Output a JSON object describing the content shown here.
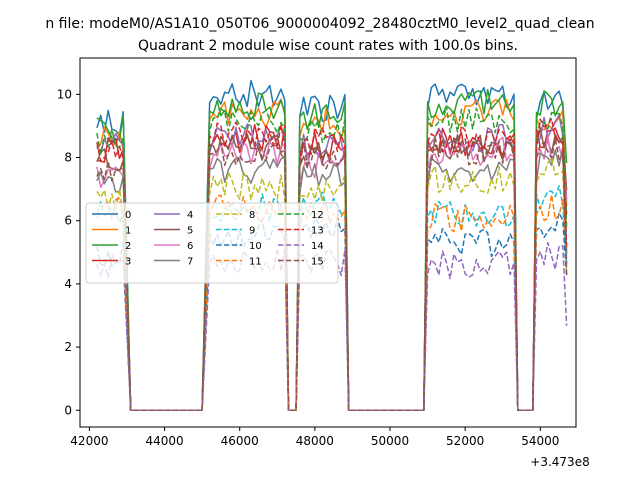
{
  "suptitle": "n file: modeM0/AS1A10_050T06_9000004092_28480cztM0_level2_quad_clean",
  "chart_data": {
    "type": "line",
    "title": "Quadrant 2 module wise count rates with 100.0s bins.",
    "xlabel": "",
    "ylabel": "",
    "x_offset_label": "+3.473e8",
    "xlim": [
      41750,
      54950
    ],
    "ylim": [
      -0.53,
      11.15
    ],
    "xticks": [
      42000,
      44000,
      46000,
      48000,
      50000,
      52000,
      54000
    ],
    "yticks": [
      0,
      2,
      4,
      6,
      8,
      10
    ],
    "grid": false,
    "legend_position": "center-left",
    "legend_columns": 4,
    "segments": [
      {
        "x_start": 42200,
        "x_end": 42900,
        "step": 100
      },
      {
        "x_start": 45200,
        "x_end": 47200,
        "step": 100
      },
      {
        "x_start": 47600,
        "x_end": 48800,
        "step": 100
      },
      {
        "x_start": 51000,
        "x_end": 53300,
        "step": 100
      },
      {
        "x_start": 53900,
        "x_end": 54700,
        "step": 100
      }
    ],
    "zero_x": [
      43100,
      45000,
      47300,
      47500,
      48900,
      50900,
      53400,
      53800
    ],
    "series": [
      {
        "name": "0",
        "color": "#1f77b4",
        "dash": false,
        "levels": [
          9.1,
          10.0,
          9.6,
          10.0,
          9.8
        ]
      },
      {
        "name": "1",
        "color": "#ff7f0e",
        "dash": false,
        "levels": [
          8.6,
          9.4,
          9.1,
          9.4,
          9.3
        ]
      },
      {
        "name": "2",
        "color": "#2ca02c",
        "dash": false,
        "levels": [
          9.0,
          9.6,
          9.3,
          9.7,
          9.7
        ]
      },
      {
        "name": "3",
        "color": "#d62728",
        "dash": false,
        "levels": [
          8.2,
          8.6,
          8.4,
          8.5,
          8.7
        ]
      },
      {
        "name": "4",
        "color": "#9467bd",
        "dash": false,
        "levels": [
          8.4,
          8.7,
          8.4,
          8.6,
          8.9
        ]
      },
      {
        "name": "5",
        "color": "#8c564b",
        "dash": false,
        "levels": [
          7.9,
          8.3,
          8.1,
          8.3,
          8.5
        ]
      },
      {
        "name": "6",
        "color": "#e377c2",
        "dash": false,
        "levels": [
          7.5,
          8.1,
          7.8,
          8.2,
          8.3
        ]
      },
      {
        "name": "7",
        "color": "#7f7f7f",
        "dash": false,
        "levels": [
          7.2,
          7.6,
          7.5,
          7.6,
          7.9
        ]
      },
      {
        "name": "8",
        "color": "#bcbd22",
        "dash": true,
        "levels": [
          6.6,
          7.1,
          7.0,
          7.3,
          7.7
        ]
      },
      {
        "name": "9",
        "color": "#17becf",
        "dash": true,
        "levels": [
          6.2,
          6.4,
          6.5,
          6.2,
          6.8
        ]
      },
      {
        "name": "10",
        "color": "#1f77b4",
        "dash": true,
        "levels": [
          5.0,
          5.6,
          5.8,
          5.3,
          5.9
        ]
      },
      {
        "name": "11",
        "color": "#ff7f0e",
        "dash": true,
        "levels": [
          6.3,
          6.4,
          6.3,
          6.1,
          6.4
        ]
      },
      {
        "name": "12",
        "color": "#2ca02c",
        "dash": true,
        "levels": [
          8.5,
          9.1,
          8.9,
          9.2,
          9.1
        ]
      },
      {
        "name": "13",
        "color": "#d62728",
        "dash": true,
        "levels": [
          8.1,
          8.7,
          8.5,
          8.6,
          8.8
        ]
      },
      {
        "name": "14",
        "color": "#9467bd",
        "dash": true,
        "levels": [
          4.5,
          4.8,
          4.7,
          4.6,
          4.9
        ]
      },
      {
        "name": "15",
        "color": "#8c564b",
        "dash": true,
        "levels": [
          7.7,
          8.2,
          8.0,
          8.2,
          8.2
        ]
      }
    ]
  }
}
